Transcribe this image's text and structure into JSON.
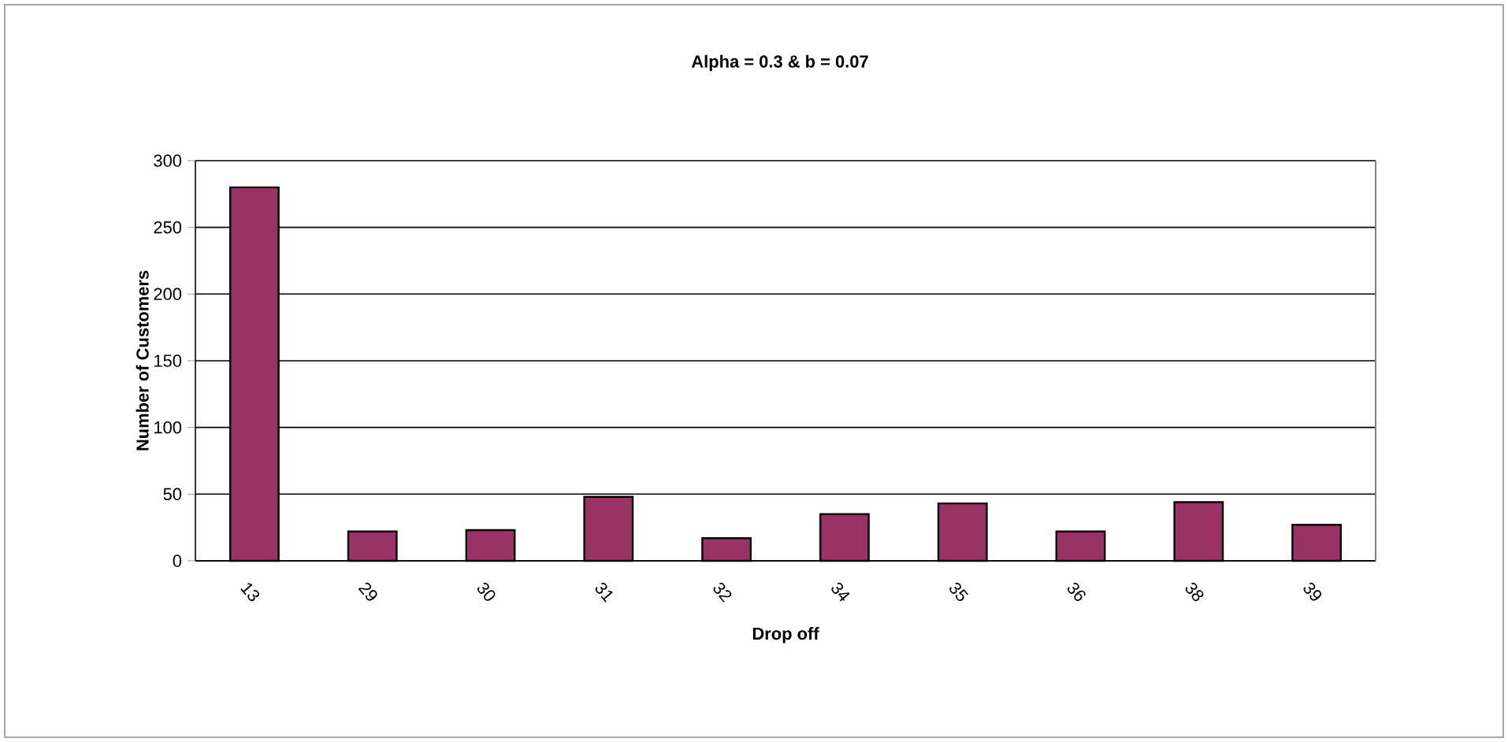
{
  "chart_data": {
    "type": "bar",
    "title": "Alpha = 0.3 & b = 0.07",
    "xlabel": "Drop off",
    "ylabel": "Number of Customers",
    "categories": [
      "13",
      "29",
      "30",
      "31",
      "32",
      "34",
      "35",
      "36",
      "38",
      "39"
    ],
    "values": [
      280,
      22,
      23,
      48,
      17,
      35,
      43,
      22,
      44,
      27
    ],
    "color": "#993366",
    "ylim": [
      0,
      300
    ],
    "yticks": [
      0,
      50,
      100,
      150,
      200,
      250,
      300
    ],
    "grid": "y"
  }
}
